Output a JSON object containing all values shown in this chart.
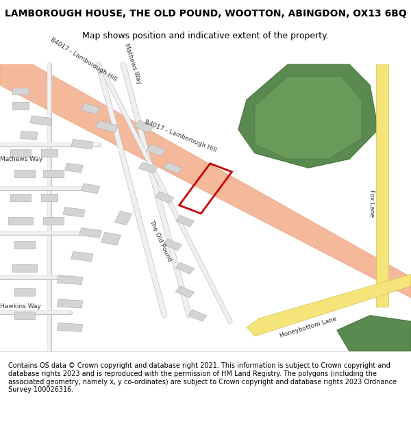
{
  "title": "LAMBOROUGH HOUSE, THE OLD POUND, WOOTTON, ABINGDON, OX13 6BQ",
  "subtitle": "Map shows position and indicative extent of the property.",
  "footer": "Contains OS data © Crown copyright and database right 2021. This information is subject to Crown copyright and database rights 2023 and is reproduced with the permission of HM Land Registry. The polygons (including the associated geometry, namely x, y co-ordinates) are subject to Crown copyright and database rights 2023 Ordnance Survey 100026316.",
  "bg_color": "#f8f8f8",
  "map_bg": "#f5f5f3",
  "road_main_color": "#f4b89a",
  "road_main_outline": "#e8a080",
  "building_color": "#d4d4d4",
  "building_outline": "#b0b0b0",
  "green_color": "#5a8a50",
  "green_outline": "#4a7a40",
  "green2_color": "#6a9a5a",
  "yellow_road_color": "#f5e47a",
  "yellow_road_outline": "#d4c050",
  "plot_outline": "#cc0000",
  "plot_linewidth": 2.0,
  "title_fontsize": 10,
  "subtitle_fontsize": 9,
  "footer_fontsize": 7,
  "label_fontsize": 6.5,
  "label_color": "#333333"
}
